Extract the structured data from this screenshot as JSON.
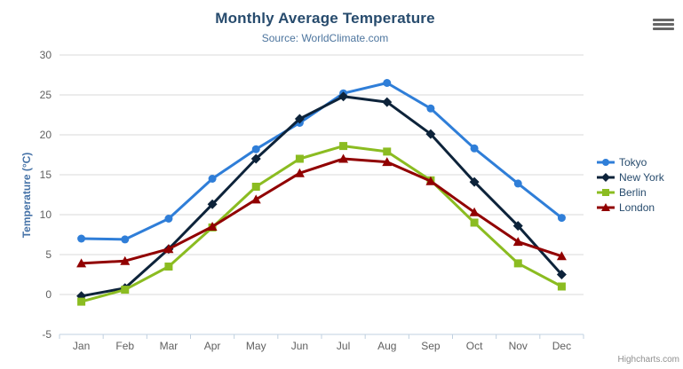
{
  "credits": {
    "label": "Highcharts.com"
  },
  "export_menu": {
    "icon": "hamburger-icon"
  },
  "theme": {
    "background": "#ffffff",
    "title_color": "#274b6d",
    "subtitle_color": "#4d759e",
    "axis_title_color": "#4572a7",
    "axis_label_color": "#606060",
    "grid_color": "#d8d8d8",
    "axis_line_color": "#c0d0e0",
    "legend_text_color": "#274b6d",
    "credits_color": "#909090",
    "menu_icon_color": "#666666"
  },
  "chart_data": {
    "type": "line",
    "title": "Monthly Average Temperature",
    "subtitle": "Source: WorldClimate.com",
    "xlabel": "",
    "ylabel": "Temperature (°C)",
    "categories": [
      "Jan",
      "Feb",
      "Mar",
      "Apr",
      "May",
      "Jun",
      "Jul",
      "Aug",
      "Sep",
      "Oct",
      "Nov",
      "Dec"
    ],
    "ylim": [
      -5,
      30
    ],
    "ytick_step": 5,
    "grid": true,
    "legend_position": "right",
    "series": [
      {
        "name": "Tokyo",
        "color": "#2f7ed8",
        "marker": "circle",
        "values": [
          7.0,
          6.9,
          9.5,
          14.5,
          18.2,
          21.5,
          25.2,
          26.5,
          23.3,
          18.3,
          13.9,
          9.6
        ]
      },
      {
        "name": "New York",
        "color": "#0d233a",
        "marker": "diamond",
        "values": [
          -0.2,
          0.8,
          5.7,
          11.3,
          17.0,
          22.0,
          24.8,
          24.1,
          20.1,
          14.1,
          8.6,
          2.5
        ]
      },
      {
        "name": "Berlin",
        "color": "#8bbc21",
        "marker": "square",
        "values": [
          -0.9,
          0.6,
          3.5,
          8.4,
          13.5,
          17.0,
          18.6,
          17.9,
          14.3,
          9.0,
          3.9,
          1.0
        ]
      },
      {
        "name": "London",
        "color": "#910000",
        "marker": "triangle",
        "values": [
          3.9,
          4.2,
          5.7,
          8.5,
          11.9,
          15.2,
          17.0,
          16.6,
          14.2,
          10.3,
          6.6,
          4.8
        ]
      }
    ]
  }
}
